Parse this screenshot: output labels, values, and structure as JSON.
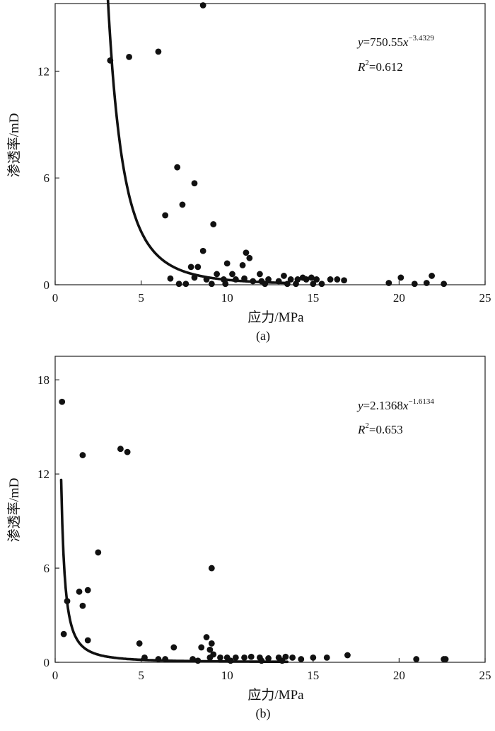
{
  "chart_data": [
    {
      "type": "scatter",
      "caption": "(a)",
      "xlabel": "应力/MPa",
      "ylabel": "渗透率/mD",
      "xlim": [
        0,
        25
      ],
      "ylim": [
        0,
        15.8
      ],
      "xticks": [
        0,
        5,
        10,
        15,
        20,
        25
      ],
      "yticks": [
        0,
        6,
        12
      ],
      "equation": {
        "var": "y",
        "eq": "=750.55",
        "base": "x",
        "exp": "−3.4329"
      },
      "r2": {
        "var": "R",
        "sup": "2",
        "val": "=0.612"
      },
      "fit": {
        "a": 750.55,
        "b": -3.4329,
        "x_start": 2.9,
        "x_end": 13.5
      },
      "points": [
        [
          8.6,
          15.7
        ],
        [
          6.0,
          13.1
        ],
        [
          4.3,
          12.8
        ],
        [
          3.2,
          12.6
        ],
        [
          7.1,
          6.6
        ],
        [
          8.1,
          5.7
        ],
        [
          7.4,
          4.5
        ],
        [
          6.4,
          3.9
        ],
        [
          9.2,
          3.4
        ],
        [
          8.6,
          1.9
        ],
        [
          11.1,
          1.8
        ],
        [
          11.3,
          1.5
        ],
        [
          10.0,
          1.2
        ],
        [
          10.9,
          1.1
        ],
        [
          7.9,
          1.0
        ],
        [
          8.3,
          1.0
        ],
        [
          9.4,
          0.6
        ],
        [
          10.3,
          0.6
        ],
        [
          11.9,
          0.6
        ],
        [
          13.3,
          0.5
        ],
        [
          14.4,
          0.4
        ],
        [
          14.9,
          0.4
        ],
        [
          6.7,
          0.35
        ],
        [
          8.1,
          0.4
        ],
        [
          8.8,
          0.3
        ],
        [
          9.8,
          0.3
        ],
        [
          10.5,
          0.3
        ],
        [
          11.0,
          0.35
        ],
        [
          11.5,
          0.2
        ],
        [
          12.0,
          0.2
        ],
        [
          12.4,
          0.3
        ],
        [
          13.0,
          0.2
        ],
        [
          13.7,
          0.3
        ],
        [
          14.1,
          0.3
        ],
        [
          14.6,
          0.3
        ],
        [
          15.2,
          0.3
        ],
        [
          16.0,
          0.3
        ],
        [
          16.4,
          0.3
        ],
        [
          16.8,
          0.25
        ],
        [
          7.2,
          0.05
        ],
        [
          7.6,
          0.05
        ],
        [
          9.1,
          0.05
        ],
        [
          9.9,
          0.05
        ],
        [
          12.2,
          0.05
        ],
        [
          13.5,
          0.05
        ],
        [
          14.0,
          0.05
        ],
        [
          15.0,
          0.05
        ],
        [
          15.5,
          0.05
        ],
        [
          19.4,
          0.1
        ],
        [
          20.1,
          0.4
        ],
        [
          20.9,
          0.05
        ],
        [
          21.6,
          0.1
        ],
        [
          21.9,
          0.5
        ],
        [
          22.6,
          0.05
        ]
      ]
    },
    {
      "type": "scatter",
      "caption": "(b)",
      "xlabel": "应力/MPa",
      "ylabel": "渗透率/mD",
      "xlim": [
        0,
        25
      ],
      "ylim": [
        0,
        19.5
      ],
      "xticks": [
        0,
        5,
        10,
        15,
        20,
        25
      ],
      "yticks": [
        0,
        6,
        12,
        18
      ],
      "equation": {
        "var": "y",
        "eq": "=2.1368",
        "base": "x",
        "exp": "−1.6134"
      },
      "r2": {
        "var": "R",
        "sup": "2",
        "val": "=0.653"
      },
      "fit": {
        "a": 2.1368,
        "b": -1.6134,
        "x_start": 0.35,
        "x_end": 13.5
      },
      "points": [
        [
          0.4,
          16.6
        ],
        [
          0.7,
          3.9
        ],
        [
          0.5,
          1.8
        ],
        [
          1.4,
          4.5
        ],
        [
          1.6,
          3.6
        ],
        [
          1.9,
          4.6
        ],
        [
          1.9,
          1.4
        ],
        [
          1.6,
          13.2
        ],
        [
          3.8,
          13.6
        ],
        [
          4.2,
          13.4
        ],
        [
          2.5,
          7.0
        ],
        [
          4.9,
          1.2
        ],
        [
          5.2,
          0.3
        ],
        [
          6.0,
          0.2
        ],
        [
          6.4,
          0.2
        ],
        [
          6.9,
          0.95
        ],
        [
          8.0,
          0.2
        ],
        [
          8.5,
          0.95
        ],
        [
          8.8,
          1.6
        ],
        [
          9.1,
          1.2
        ],
        [
          9.0,
          0.8
        ],
        [
          9.2,
          0.5
        ],
        [
          9.0,
          0.3
        ],
        [
          9.6,
          0.3
        ],
        [
          10.0,
          0.3
        ],
        [
          10.5,
          0.3
        ],
        [
          11.0,
          0.3
        ],
        [
          11.4,
          0.35
        ],
        [
          11.9,
          0.3
        ],
        [
          12.4,
          0.25
        ],
        [
          13.0,
          0.3
        ],
        [
          13.4,
          0.35
        ],
        [
          13.8,
          0.3
        ],
        [
          14.3,
          0.2
        ],
        [
          15.0,
          0.3
        ],
        [
          15.8,
          0.3
        ],
        [
          17.0,
          0.45
        ],
        [
          21.0,
          0.2
        ],
        [
          22.6,
          0.2
        ],
        [
          22.7,
          0.2
        ],
        [
          9.1,
          6.0
        ],
        [
          8.3,
          0.1
        ],
        [
          10.2,
          0.1
        ],
        [
          12.0,
          0.1
        ],
        [
          13.2,
          0.1
        ]
      ]
    }
  ]
}
